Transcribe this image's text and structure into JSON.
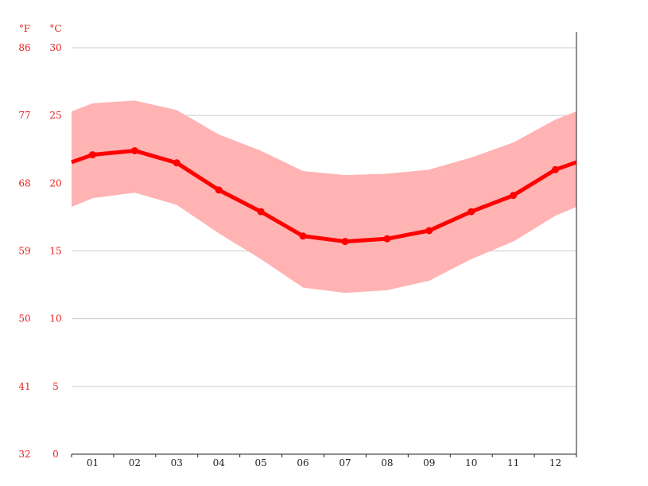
{
  "chart_data": {
    "type": "area",
    "categories": [
      "01",
      "02",
      "03",
      "04",
      "05",
      "06",
      "07",
      "08",
      "09",
      "10",
      "11",
      "12"
    ],
    "series": [
      {
        "values": [
          22.1,
          22.4,
          21.5,
          19.5,
          17.9,
          16.1,
          15.7,
          15.9,
          16.5,
          17.9,
          19.1,
          21.0
        ]
      }
    ],
    "band": {
      "upper": [
        25.9,
        26.1,
        25.4,
        23.6,
        22.4,
        20.9,
        20.6,
        20.7,
        21.0,
        21.9,
        23.0,
        24.7
      ],
      "lower": [
        18.9,
        19.3,
        18.4,
        16.3,
        14.4,
        12.3,
        11.9,
        12.1,
        12.8,
        14.4,
        15.7,
        17.6
      ]
    },
    "y_units": {
      "fahrenheit": "°F",
      "celsius": "°C"
    },
    "yticks_c": [
      "0",
      "5",
      "10",
      "15",
      "20",
      "25",
      "30"
    ],
    "yticks_f": [
      "32",
      "41",
      "50",
      "59",
      "68",
      "77",
      "86"
    ],
    "ylim": [
      0,
      30
    ],
    "grid": true,
    "colors": {
      "line": "#ff0000",
      "band": "#ffb3b3",
      "axis_text": "#e8201f",
      "grid": "#cccccc"
    }
  }
}
